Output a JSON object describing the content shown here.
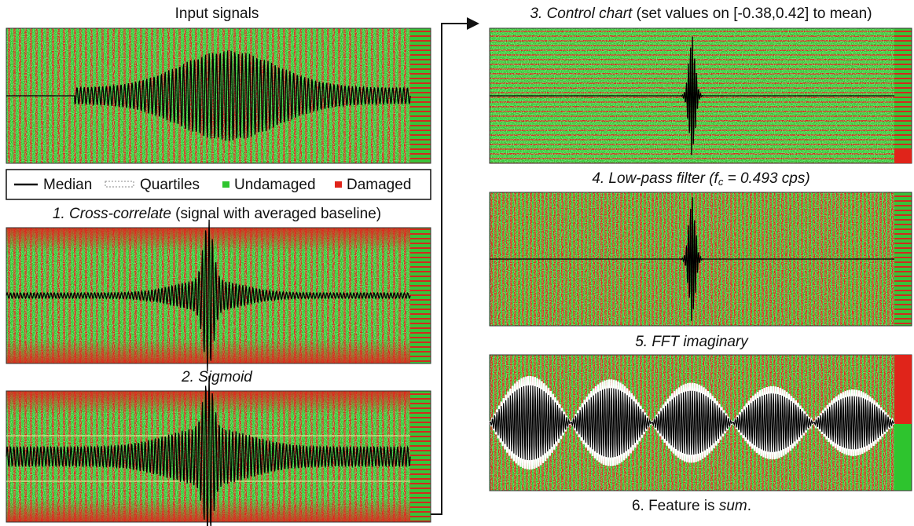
{
  "left": {
    "input_title": "Input signals",
    "legend": {
      "median": "Median",
      "quartiles": "Quartiles",
      "undamaged": "Undamaged",
      "damaged": "Damaged"
    },
    "step1": {
      "number": "1.",
      "name": "Cross-correlate",
      "note": "(signal with averaged baseline)"
    },
    "step2": {
      "number": "2.",
      "name": "Sigmoid"
    }
  },
  "right": {
    "step3": {
      "number": "3.",
      "name": "Control chart",
      "note": "(set values on [-0.38,0.42] to mean)"
    },
    "step4": {
      "name": "4. Low-pass filter (f",
      "subscript": "c",
      "rest": " = 0.493 cps)"
    },
    "step5": {
      "name": "5. FFT imaginary"
    },
    "step6": {
      "prefix": "6. Feature is",
      "name": "sum",
      "suffix": "."
    }
  }
}
